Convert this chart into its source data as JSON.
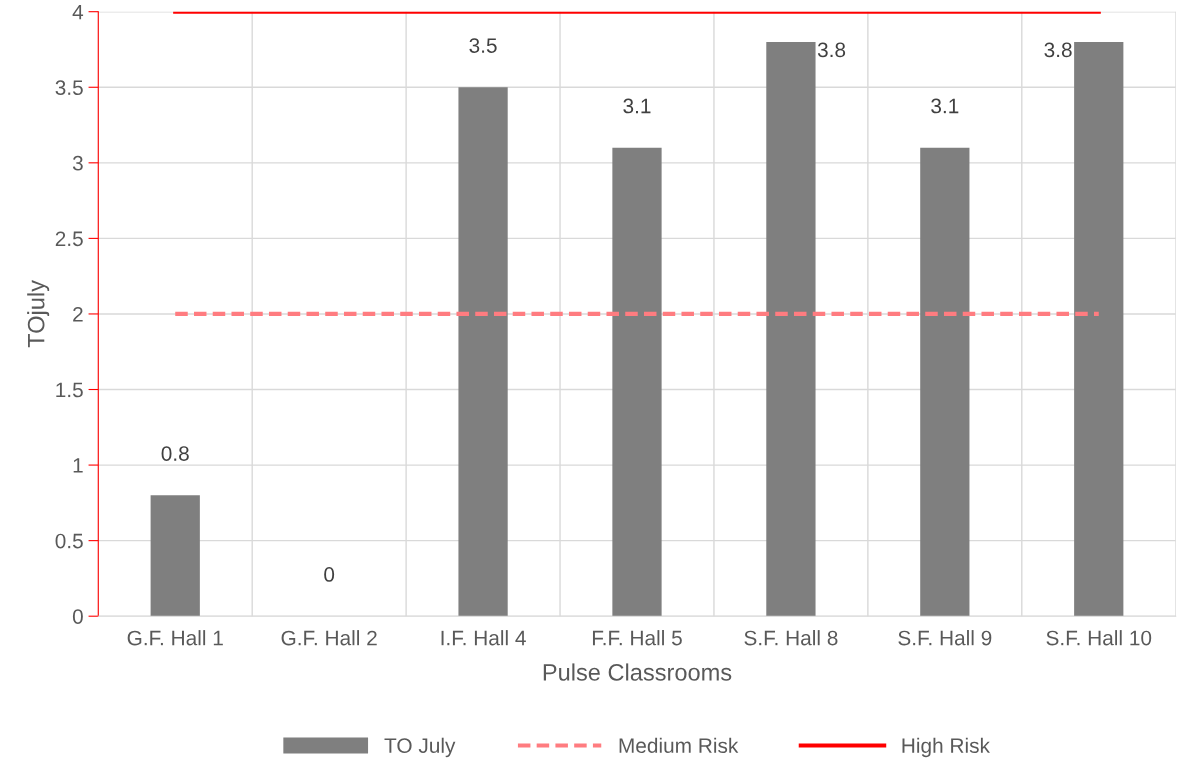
{
  "chart_data": {
    "type": "bar",
    "xlabel": "Pulse Classrooms",
    "ylabel": "TOjuly",
    "categories": [
      "G.F. Hall 1",
      "G.F. Hall 2",
      "I.F. Hall 4",
      "F.F. Hall 5",
      "S.F. Hall 8",
      "S.F. Hall 9",
      "S.F. Hall 10"
    ],
    "series": [
      {
        "name": "TO July",
        "color": "#7f7f7f",
        "values": [
          0.8,
          0,
          3.5,
          3.1,
          3.8,
          3.1,
          3.8
        ],
        "data_labels": true
      },
      {
        "name": "Medium Risk",
        "type": "line",
        "color": "#ff7c80",
        "line_style": "dashed",
        "values": [
          2,
          2,
          2,
          2,
          2,
          2,
          2
        ]
      },
      {
        "name": "High Risk",
        "type": "line",
        "color": "#ff0000",
        "line_style": "solid",
        "values": [
          4,
          4,
          4,
          4,
          4,
          4,
          4
        ]
      }
    ],
    "ylim": [
      0,
      4
    ],
    "yticks": [
      0,
      0.5,
      1,
      1.5,
      2,
      2.5,
      3,
      3.5,
      4
    ],
    "grid": true,
    "legend": "bottom"
  }
}
